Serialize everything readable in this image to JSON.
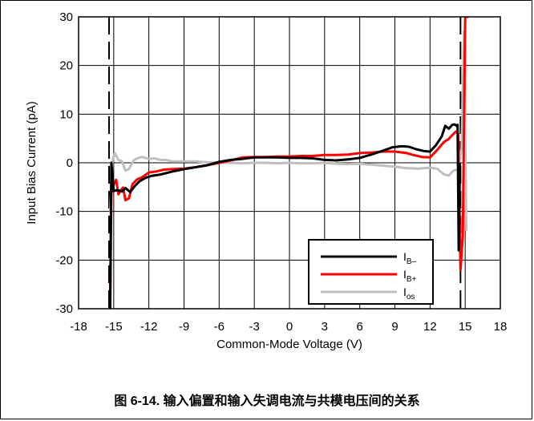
{
  "chart_data": {
    "type": "line",
    "title": "",
    "xlabel": "Common-Mode Voltage (V)",
    "ylabel": "Input Bias Current (pA)",
    "xlim": [
      -18,
      18
    ],
    "ylim": [
      -30,
      30
    ],
    "xticks": [
      "-18",
      "-15",
      "-12",
      "-9",
      "-6",
      "-3",
      "0",
      "3",
      "6",
      "9",
      "12",
      "15",
      "18"
    ],
    "yticks": [
      "30",
      "20",
      "10",
      "0",
      "-10",
      "-20",
      "-30"
    ],
    "grid": "vertical",
    "legend_position": "bottom-right",
    "reference_lines": [
      {
        "x": -15.4,
        "style": "dashed",
        "color": "#000000"
      },
      {
        "x": 14.6,
        "style": "dashed",
        "color": "#000000"
      }
    ],
    "series": [
      {
        "name": "I",
        "subscript": "B–",
        "color": "#000000",
        "x": [
          -15.3,
          -15.2,
          -15.0,
          -14.7,
          -14.3,
          -14.0,
          -13.6,
          -13.2,
          -12.8,
          -12.3,
          -11.8,
          -11.0,
          -10.0,
          -9.0,
          -8.0,
          -7.0,
          -6.0,
          -5.0,
          -4.0,
          -3.0,
          -2.0,
          -1.0,
          0.0,
          1.0,
          2.0,
          3.0,
          4.0,
          5.0,
          6.0,
          7.0,
          8.0,
          8.8,
          9.6,
          10.2,
          10.8,
          11.5,
          12.0,
          12.5,
          13.0,
          13.3,
          13.6,
          13.9,
          14.1,
          14.25,
          14.35,
          14.45,
          14.55
        ],
        "y": [
          -30,
          0,
          -5.8,
          -5.6,
          -5.9,
          -5.2,
          -6.0,
          -4.8,
          -3.8,
          -3.1,
          -2.7,
          -2.4,
          -1.8,
          -1.3,
          -0.9,
          -0.5,
          0.2,
          0.6,
          0.8,
          1.1,
          1.1,
          1.1,
          1.0,
          1.0,
          0.9,
          0.6,
          0.5,
          0.7,
          1.0,
          1.7,
          2.5,
          3.2,
          3.4,
          3.3,
          2.8,
          2.4,
          2.3,
          3.6,
          5.4,
          7.6,
          7.0,
          7.8,
          7.9,
          7.6,
          7.8,
          -18,
          0
        ]
      },
      {
        "name": "I",
        "subscript": "B+",
        "color": "#ff0000",
        "x": [
          -15.3,
          -15.2,
          -15.0,
          -14.8,
          -14.6,
          -14.4,
          -14.2,
          -14.0,
          -13.7,
          -13.4,
          -13.0,
          -12.6,
          -12.0,
          -11.4,
          -10.7,
          -10.0,
          -9.0,
          -8.0,
          -7.0,
          -6.0,
          -5.0,
          -4.0,
          -3.0,
          -2.0,
          -1.0,
          0.0,
          1.0,
          2.0,
          3.0,
          4.0,
          5.0,
          6.0,
          7.0,
          8.0,
          9.0,
          10.0,
          10.6,
          11.3,
          12.0,
          12.6,
          13.2,
          13.6,
          13.9,
          14.2,
          14.4,
          14.6,
          14.8,
          15.0,
          15.3
        ],
        "y": [
          -30,
          -6.3,
          -4.5,
          -3.5,
          -6.5,
          -5.6,
          -5.1,
          -7.7,
          -7.3,
          -4.4,
          -3.4,
          -3.0,
          -2.0,
          -1.8,
          -1.4,
          -1.3,
          -1.2,
          -0.9,
          -0.5,
          0.0,
          0.5,
          1.1,
          1.2,
          1.2,
          1.3,
          1.3,
          1.4,
          1.4,
          1.6,
          1.6,
          1.7,
          2.0,
          2.1,
          2.3,
          2.3,
          2.0,
          1.6,
          1.2,
          1.1,
          2.6,
          4.3,
          4.9,
          5.7,
          6.4,
          6.0,
          -22,
          -15,
          30,
          30
        ]
      },
      {
        "name": "I",
        "subscript": "os",
        "color": "#bfbfbf",
        "x": [
          -15.3,
          -15.1,
          -14.9,
          -14.6,
          -14.3,
          -14.0,
          -13.7,
          -13.3,
          -13.0,
          -12.6,
          -12.0,
          -11.5,
          -11.0,
          -10.5,
          -10.0,
          -9.0,
          -8.0,
          -7.0,
          -6.0,
          -5.0,
          -4.0,
          -3.0,
          -2.0,
          -1.0,
          0.0,
          1.0,
          2.0,
          3.0,
          4.0,
          5.0,
          6.0,
          7.0,
          8.0,
          9.0,
          10.0,
          11.0,
          12.0,
          12.6,
          13.2,
          13.6,
          14.0,
          14.4,
          14.7,
          14.9,
          15.1
        ],
        "y": [
          -10,
          0.5,
          2.0,
          0.6,
          0.3,
          -1.6,
          -1.3,
          0.5,
          0.9,
          1.2,
          0.8,
          0.9,
          0.6,
          0.6,
          0.3,
          0.3,
          0.3,
          0.1,
          0.0,
          0.0,
          -0.1,
          0.0,
          0.0,
          -0.1,
          0.0,
          -0.1,
          -0.1,
          0.0,
          -0.2,
          -0.3,
          -0.2,
          -0.4,
          -0.6,
          -0.8,
          -1.1,
          -1.2,
          -1.0,
          -1.2,
          -2.4,
          -2.6,
          -1.6,
          -1.4,
          3.0,
          27,
          -14
        ]
      }
    ]
  },
  "caption": "图 6-14. 输入偏置和输入失调电流与共模电压间的关系"
}
